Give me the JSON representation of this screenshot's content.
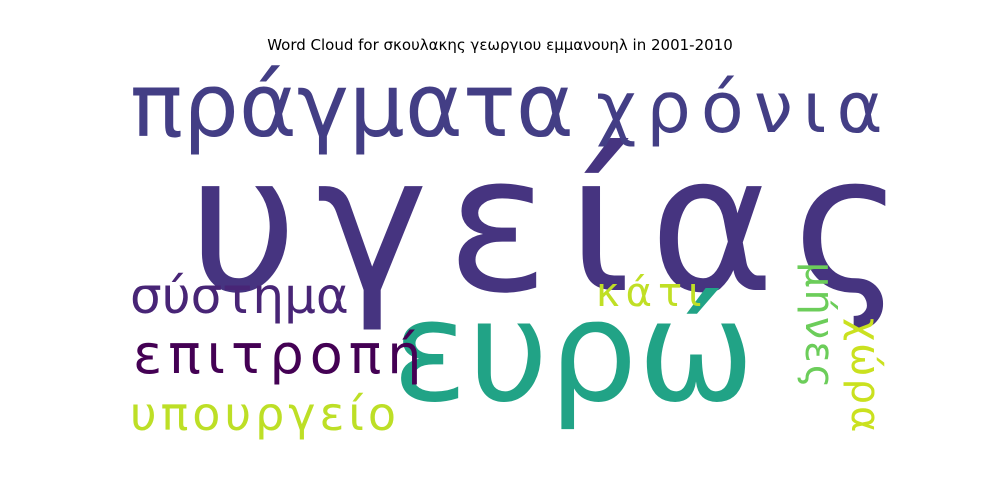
{
  "chart_data": {
    "type": "wordcloud",
    "title": "Word Cloud for σκουλακης γεωργιου εμμανουηλ in 2001-2010",
    "words": [
      {
        "text": "υγείας",
        "color": "#463480"
      },
      {
        "text": "ευρώ",
        "color": "#21A386"
      },
      {
        "text": "πράγματα",
        "color": "#433E85"
      },
      {
        "text": "χρόνια",
        "color": "#433E85"
      },
      {
        "text": "σύστημα",
        "color": "#482576"
      },
      {
        "text": "επιτροπή",
        "color": "#440154"
      },
      {
        "text": "υπουργείο",
        "color": "#BDDF26"
      },
      {
        "text": "κάτι",
        "color": "#C0DF25"
      },
      {
        "text": "μήνες",
        "color": "#6CCD5A"
      },
      {
        "text": "χώρα",
        "color": "#CAE11F"
      }
    ]
  }
}
